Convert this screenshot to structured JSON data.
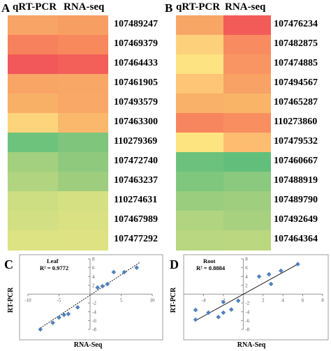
{
  "panels": {
    "A": {
      "letter": "A",
      "col1": "qRT-PCR",
      "col2": "RNA-seq"
    },
    "B": {
      "letter": "B",
      "col1": "qRT-PCR",
      "col2": "RNA-seq"
    },
    "C": {
      "letter": "C"
    },
    "D": {
      "letter": "D"
    }
  },
  "chart_data": [
    {
      "type": "heatmap",
      "panel": "A",
      "columns": [
        "qRT-PCR",
        "RNA-seq"
      ],
      "rows": [
        "107489247",
        "107469379",
        "107464433",
        "107461905",
        "107493579",
        "107463300",
        "110279369",
        "107472740",
        "107463237",
        "110274631",
        "107467989",
        "107477292"
      ],
      "colors": [
        [
          "#f8a466",
          "#f79e63"
        ],
        [
          "#f6815c",
          "#f7895d"
        ],
        [
          "#f2585a",
          "#f35f59"
        ],
        [
          "#f8a566",
          "#f8a766"
        ],
        [
          "#f8b067",
          "#f9a867"
        ],
        [
          "#fdd47c",
          "#f9b86b"
        ],
        [
          "#6dc37c",
          "#7fc67c"
        ],
        [
          "#a2d07f",
          "#8ec97e"
        ],
        [
          "#b1d480",
          "#9fcd7e"
        ],
        [
          "#cdde82",
          "#d4e082"
        ],
        [
          "#d3df83",
          "#dae183"
        ],
        [
          "#dde283",
          "#dee282"
        ]
      ]
    },
    {
      "type": "heatmap",
      "panel": "B",
      "columns": [
        "qRT-PCR",
        "RNA-seq"
      ],
      "rows": [
        "107476234",
        "107482875",
        "107474885",
        "107494567",
        "107465287",
        "110273860",
        "107479532",
        "107460667",
        "107488919",
        "107489790",
        "107492649",
        "107464364"
      ],
      "colors": [
        [
          "#f8a666",
          "#f35b58"
        ],
        [
          "#fdd17c",
          "#f88c60"
        ],
        [
          "#fde381",
          "#f99563"
        ],
        [
          "#fdc575",
          "#f8a265"
        ],
        [
          "#f9b068",
          "#f9b468"
        ],
        [
          "#f7865e",
          "#f98e61"
        ],
        [
          "#fee481",
          "#fcbd70"
        ],
        [
          "#6cc27c",
          "#62bf7b"
        ],
        [
          "#7ec77d",
          "#8ac97e"
        ],
        [
          "#9acd7e",
          "#9fce7f"
        ],
        [
          "#b1d480",
          "#a7d17f"
        ],
        [
          "#b9d680",
          "#bbd780"
        ]
      ]
    },
    {
      "type": "scatter",
      "panel": "C",
      "label": "Leaf",
      "r2": "R² = 0.9772",
      "xlabel": "RNA-Seq",
      "ylabel": "RT-PCR",
      "xlim": [
        -10,
        10
      ],
      "ylim": [
        -8,
        8
      ],
      "xticks": [
        -10,
        -5,
        0,
        5,
        10
      ],
      "yticks": [
        -8,
        -6,
        -4,
        -2,
        0,
        2,
        4,
        6,
        8
      ],
      "points": [
        [
          -8,
          -8
        ],
        [
          -6,
          -6.5
        ],
        [
          -5,
          -5.3
        ],
        [
          -4.2,
          -4.7
        ],
        [
          -3.5,
          -4.5
        ],
        [
          -2,
          -3
        ],
        [
          1.2,
          1.5
        ],
        [
          2,
          1.8
        ],
        [
          2.8,
          2.3
        ],
        [
          3.8,
          5
        ],
        [
          5.5,
          5
        ],
        [
          7.5,
          6
        ]
      ],
      "trendline": {
        "x": [
          -8,
          8
        ],
        "y": [
          -7.7,
          7.2
        ]
      },
      "color": "#4f81bd"
    },
    {
      "type": "scatter",
      "panel": "D",
      "label": "Root",
      "r2": "R² = 0.8884",
      "xlabel": "RNA-Seq",
      "ylabel": "RT-PCR",
      "xlim": [
        -6,
        8
      ],
      "ylim": [
        -8,
        8
      ],
      "xticks": [
        -4,
        -2,
        0,
        2,
        4,
        6,
        8
      ],
      "yticks": [
        -8,
        -6,
        -4,
        -2,
        0,
        2,
        4,
        6,
        8
      ],
      "points": [
        [
          -4.8,
          -5.8
        ],
        [
          -4.8,
          -3.6
        ],
        [
          -3.5,
          -4.2
        ],
        [
          -2.5,
          -5.2
        ],
        [
          -2,
          -4.2
        ],
        [
          -2,
          -1.8
        ],
        [
          -1.2,
          -3.5
        ],
        [
          -0.5,
          -1.5
        ],
        [
          1.6,
          4
        ],
        [
          2.6,
          4.5
        ],
        [
          2.8,
          2.3
        ],
        [
          3.8,
          5.3
        ],
        [
          5.5,
          6.8
        ]
      ],
      "trendline": {
        "x": [
          -4.8,
          5.5
        ],
        "y": [
          -6,
          6.8
        ]
      },
      "color": "#4f81bd"
    }
  ]
}
